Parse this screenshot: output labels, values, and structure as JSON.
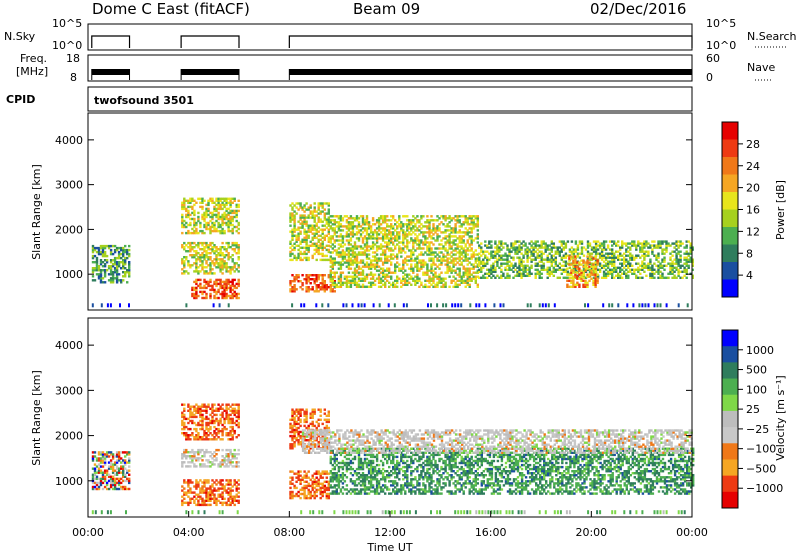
{
  "header": {
    "station": "Dome C East (fitACF)",
    "beam": "Beam 09",
    "date": "02/Dec/2016"
  },
  "top_panels": {
    "nsky_label": "N.Sky",
    "nsky_ticks": [
      "10^5",
      "10^0"
    ],
    "nsearch_label": "N.Search",
    "nsearch_ticks": [
      "10^5",
      "10^0"
    ],
    "freq_label_1": "Freq.",
    "freq_label_2": "[MHz]",
    "freq_ticks": [
      "18",
      "8"
    ],
    "nave_label": "Nave",
    "nave_ticks": [
      "60",
      "0"
    ],
    "cpid_label": "CPID",
    "cpid_value": "twofsound 3501"
  },
  "colors": {
    "power_scale": [
      "#0000ff",
      "#1a4fa0",
      "#2f7d5d",
      "#4caf50",
      "#a6d11f",
      "#e8e51c",
      "#f5a623",
      "#f07818",
      "#ee3a12",
      "#e60000"
    ],
    "velocity_scale": [
      "#e60000",
      "#ee3a12",
      "#f5a623",
      "#f07818",
      "#c8c8c8",
      "#bdbdbd",
      "#7fd848",
      "#4caf50",
      "#2f7d5d",
      "#1a4fa0",
      "#0000ff"
    ]
  },
  "chart_data": [
    {
      "type": "heatmap",
      "panel": "power",
      "xlabel": "",
      "ylabel": "Slant Range [km]",
      "xlim": [
        "00:00",
        "24:00"
      ],
      "ylim": [
        200,
        4600
      ],
      "yticks": [
        "1000",
        "2000",
        "3000",
        "4000"
      ],
      "colorbar": {
        "label": "Power [dB]",
        "ticks": [
          "28",
          "24",
          "20",
          "16",
          "12",
          "8",
          "4"
        ],
        "range": [
          0,
          32
        ]
      },
      "regions": [
        {
          "t0": 0.15,
          "t1": 1.65,
          "r0": 800,
          "r1": 1650,
          "value": 12
        },
        {
          "t0": 3.7,
          "t1": 6.0,
          "r0": 1900,
          "r1": 2700,
          "value": 16
        },
        {
          "t0": 3.7,
          "t1": 6.0,
          "r0": 1000,
          "r1": 1700,
          "value": 16
        },
        {
          "t0": 4.1,
          "t1": 6.0,
          "r0": 450,
          "r1": 900,
          "value": 28
        },
        {
          "t0": 8.0,
          "t1": 9.8,
          "r0": 600,
          "r1": 1000,
          "value": 28
        },
        {
          "t0": 8.0,
          "t1": 9.6,
          "r0": 1300,
          "r1": 2600,
          "value": 16
        },
        {
          "t0": 9.6,
          "t1": 15.5,
          "r0": 700,
          "r1": 2300,
          "value": 16
        },
        {
          "t0": 15.5,
          "t1": 24.0,
          "r0": 900,
          "r1": 1750,
          "value": 14
        },
        {
          "t0": 19.0,
          "t1": 20.2,
          "r0": 700,
          "r1": 1400,
          "value": 24
        }
      ]
    },
    {
      "type": "heatmap",
      "panel": "velocity",
      "xlabel": "Time UT",
      "ylabel": "Slant Range [km]",
      "xlim": [
        "00:00",
        "24:00"
      ],
      "ylim": [
        200,
        4600
      ],
      "xticks": [
        "00:00",
        "04:00",
        "08:00",
        "12:00",
        "16:00",
        "20:00",
        "00:00"
      ],
      "yticks": [
        "1000",
        "2000",
        "3000",
        "4000"
      ],
      "colorbar": {
        "label": "Velocity [m s⁻¹]",
        "ticks": [
          "1000",
          "500",
          "100",
          "25",
          "−25",
          "−100",
          "−500",
          "−1000"
        ]
      },
      "regions": [
        {
          "t0": 0.15,
          "t1": 1.65,
          "r0": 800,
          "r1": 1650,
          "value": "mixed"
        },
        {
          "t0": 3.7,
          "t1": 6.0,
          "r0": 1900,
          "r1": 2700,
          "value": "-100"
        },
        {
          "t0": 3.7,
          "t1": 6.0,
          "r0": 1300,
          "r1": 1700,
          "value": "0"
        },
        {
          "t0": 3.7,
          "t1": 6.0,
          "r0": 450,
          "r1": 1000,
          "value": "-100"
        },
        {
          "t0": 8.0,
          "t1": 9.6,
          "r0": 600,
          "r1": 1200,
          "value": "-100"
        },
        {
          "t0": 8.0,
          "t1": 9.6,
          "r0": 1700,
          "r1": 2600,
          "value": "-100"
        },
        {
          "t0": 9.6,
          "t1": 24.0,
          "r0": 700,
          "r1": 1700,
          "value": "100"
        },
        {
          "t0": 8.5,
          "t1": 24.0,
          "r0": 1600,
          "r1": 2100,
          "value": "0"
        }
      ]
    }
  ]
}
